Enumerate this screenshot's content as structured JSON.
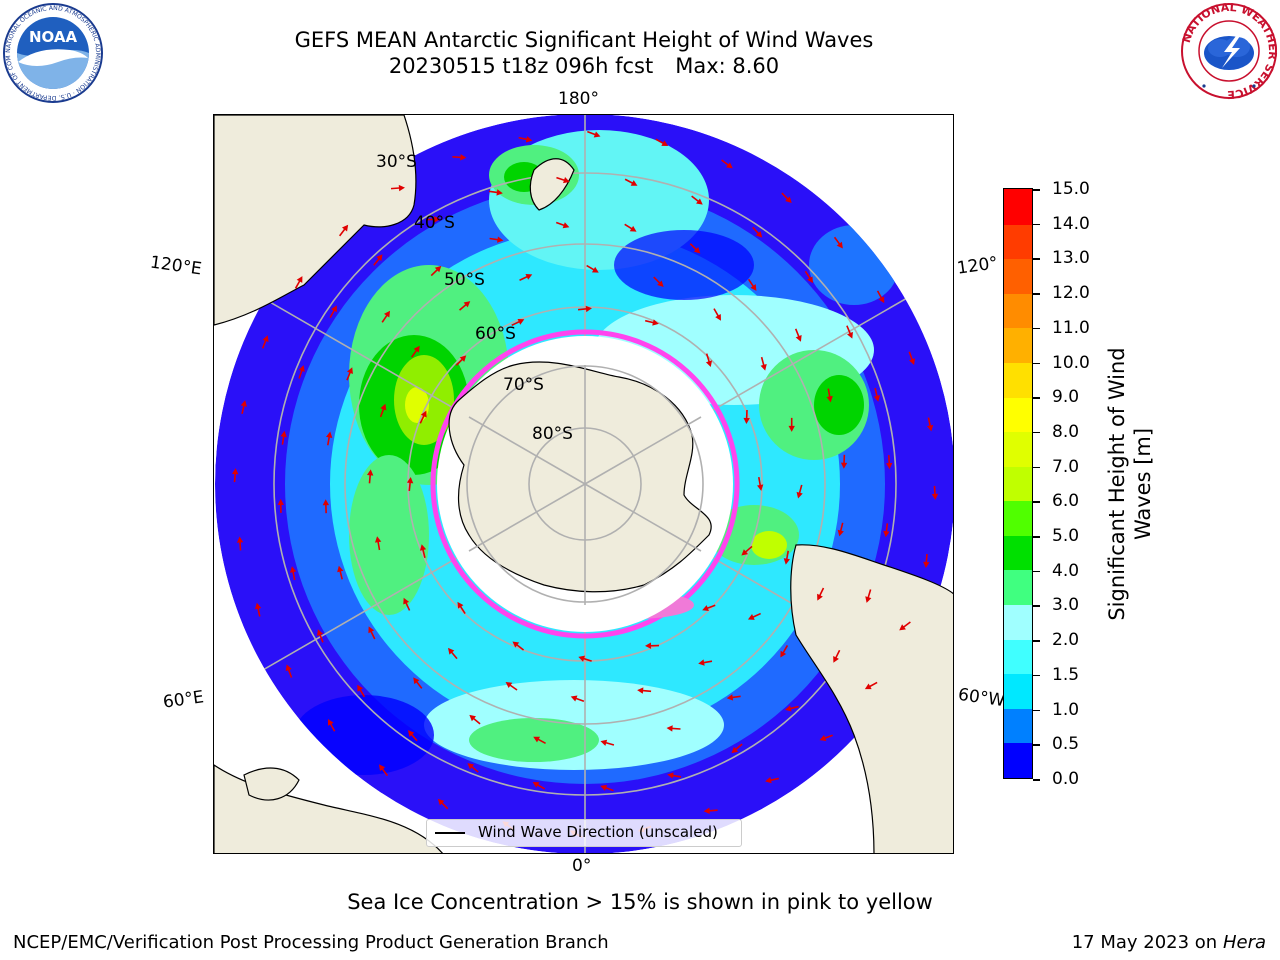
{
  "header": {
    "title_line1": "GEFS MEAN Antarctic Significant Height of Wind Waves",
    "title_line2_run": "20230515 t18z 096h fcst",
    "title_line2_max": "Max: 8.60"
  },
  "logos": {
    "noaa_text": "NOAA",
    "noaa_ring_text": "NATIONAL OCEANIC AND ATMOSPHERIC ADMINISTRATION · U.S. DEPARTMENT OF COMMERCE",
    "nws_ring_text": "NATIONAL WEATHER SERVICE"
  },
  "map": {
    "projection": "south-polar-stereographic",
    "lon_labels": {
      "top": "180°",
      "bottom": "0°",
      "left_upper": "120°E",
      "left_lower": "60°E",
      "right_upper": "120°",
      "right_lower": "60°W"
    },
    "lat_labels": [
      "30°S",
      "40°S",
      "50°S",
      "60°S",
      "70°S",
      "80°S"
    ],
    "legend_label": "Wind Wave Direction (unscaled)",
    "colors": {
      "land": "#efecdc",
      "ice_edge": "#ff44ee",
      "arrow": "#e00000",
      "grid": "#b0b0b0"
    }
  },
  "colorbar": {
    "title_line1": "Significant Height of Wind",
    "title_line2": "Waves [m]",
    "ticks": [
      "15.0",
      "14.0",
      "13.0",
      "12.0",
      "11.0",
      "10.0",
      "9.0",
      "8.0",
      "7.0",
      "6.0",
      "5.0",
      "4.0",
      "3.0",
      "2.0",
      "1.5",
      "1.0",
      "0.5",
      "0.0"
    ],
    "colors_bottom_to_top": [
      "#0000ff",
      "#0080ff",
      "#00e8ff",
      "#40ffff",
      "#a0ffff",
      "#40ff80",
      "#00e000",
      "#50ff00",
      "#c0ff00",
      "#e0ff00",
      "#ffff00",
      "#ffe000",
      "#ffb000",
      "#ff8c00",
      "#ff6000",
      "#ff3c00",
      "#ff0000"
    ]
  },
  "footer": {
    "subtitle": "Sea Ice Concentration > 15% is shown in pink to yellow",
    "left": "NCEP/EMC/Verification Post Processing Product Generation Branch",
    "right_date": "17 May 2023 on",
    "right_machine": "Hera"
  }
}
